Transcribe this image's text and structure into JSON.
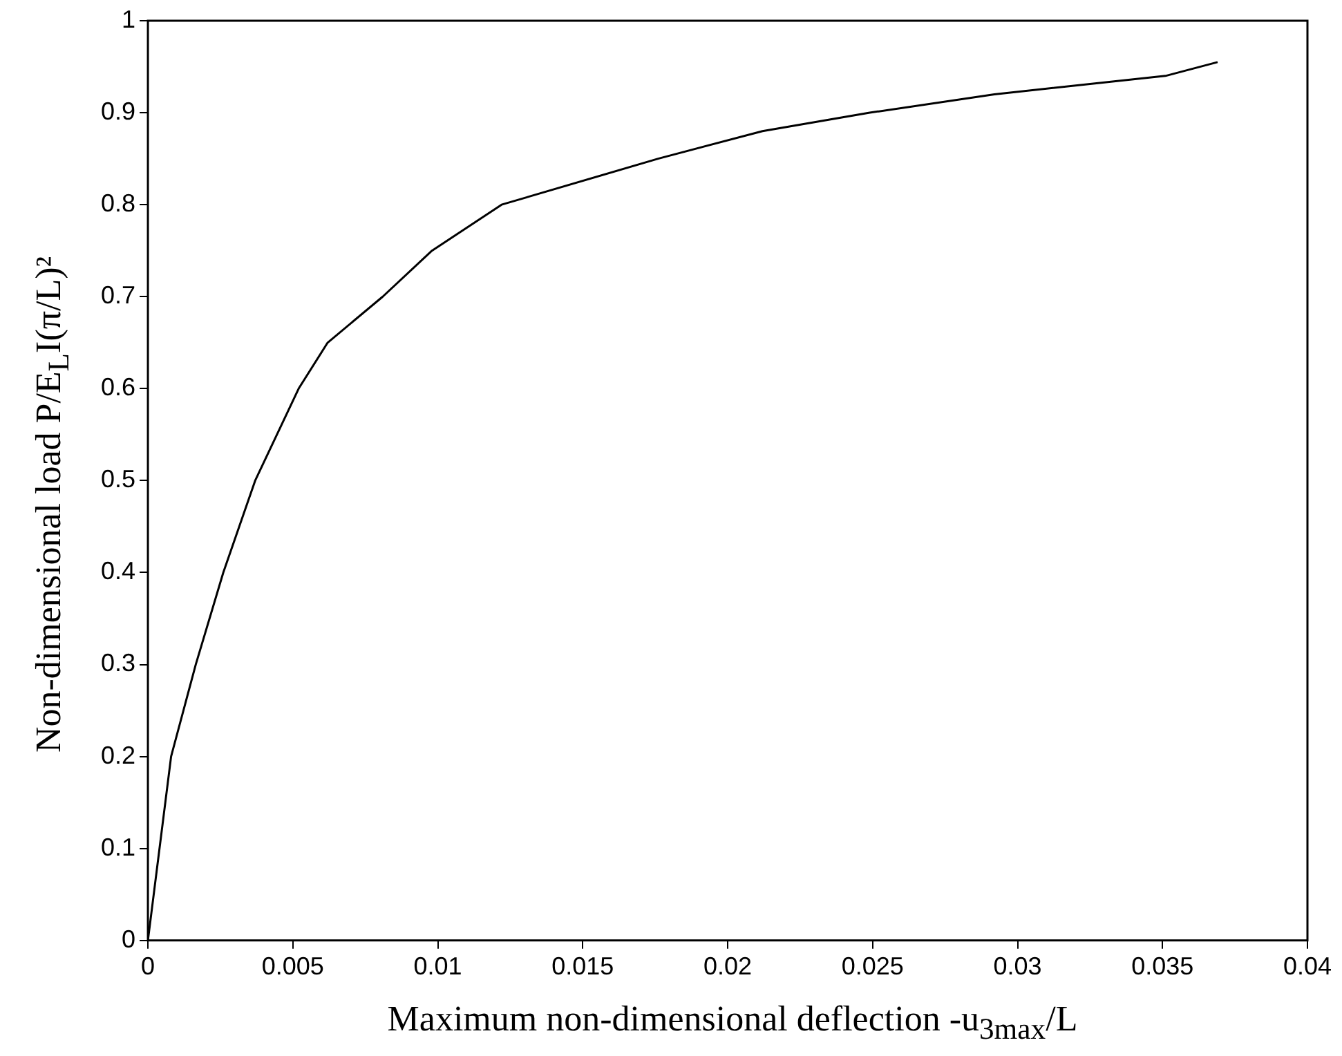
{
  "chart_data": {
    "type": "line",
    "xlabel": "Maximum non-dimensional deflection -u$_{3max}$/L",
    "ylabel": "Non-dimensional load P/E$_{L}$I(π/L)²",
    "x": [
      0,
      0.0004,
      0.0008,
      0.00165,
      0.0026,
      0.0037,
      0.0052,
      0.0062,
      0.0081,
      0.0098,
      0.0122,
      0.0176,
      0.0212,
      0.0249,
      0.0292,
      0.0351,
      0.0369
    ],
    "series": [
      {
        "color": "#000000",
        "values": [
          0,
          0.1,
          0.2,
          0.3,
          0.4,
          0.5,
          0.6,
          0.65,
          0.7,
          0.75,
          0.8,
          0.85,
          0.88,
          0.9,
          0.92,
          0.94,
          0.955
        ]
      }
    ],
    "xlim": [
      0,
      0.04
    ],
    "xticks": [
      0,
      0.005,
      0.01,
      0.015,
      0.02,
      0.025,
      0.03,
      0.035,
      0.04
    ],
    "ylim": [
      0,
      1
    ],
    "yticks": [
      0,
      0.1,
      0.2,
      0.3,
      0.4,
      0.5,
      0.6,
      0.7,
      0.8,
      0.9,
      1
    ],
    "grid": false,
    "legend": false,
    "marker": "none",
    "line_style": "solid"
  }
}
